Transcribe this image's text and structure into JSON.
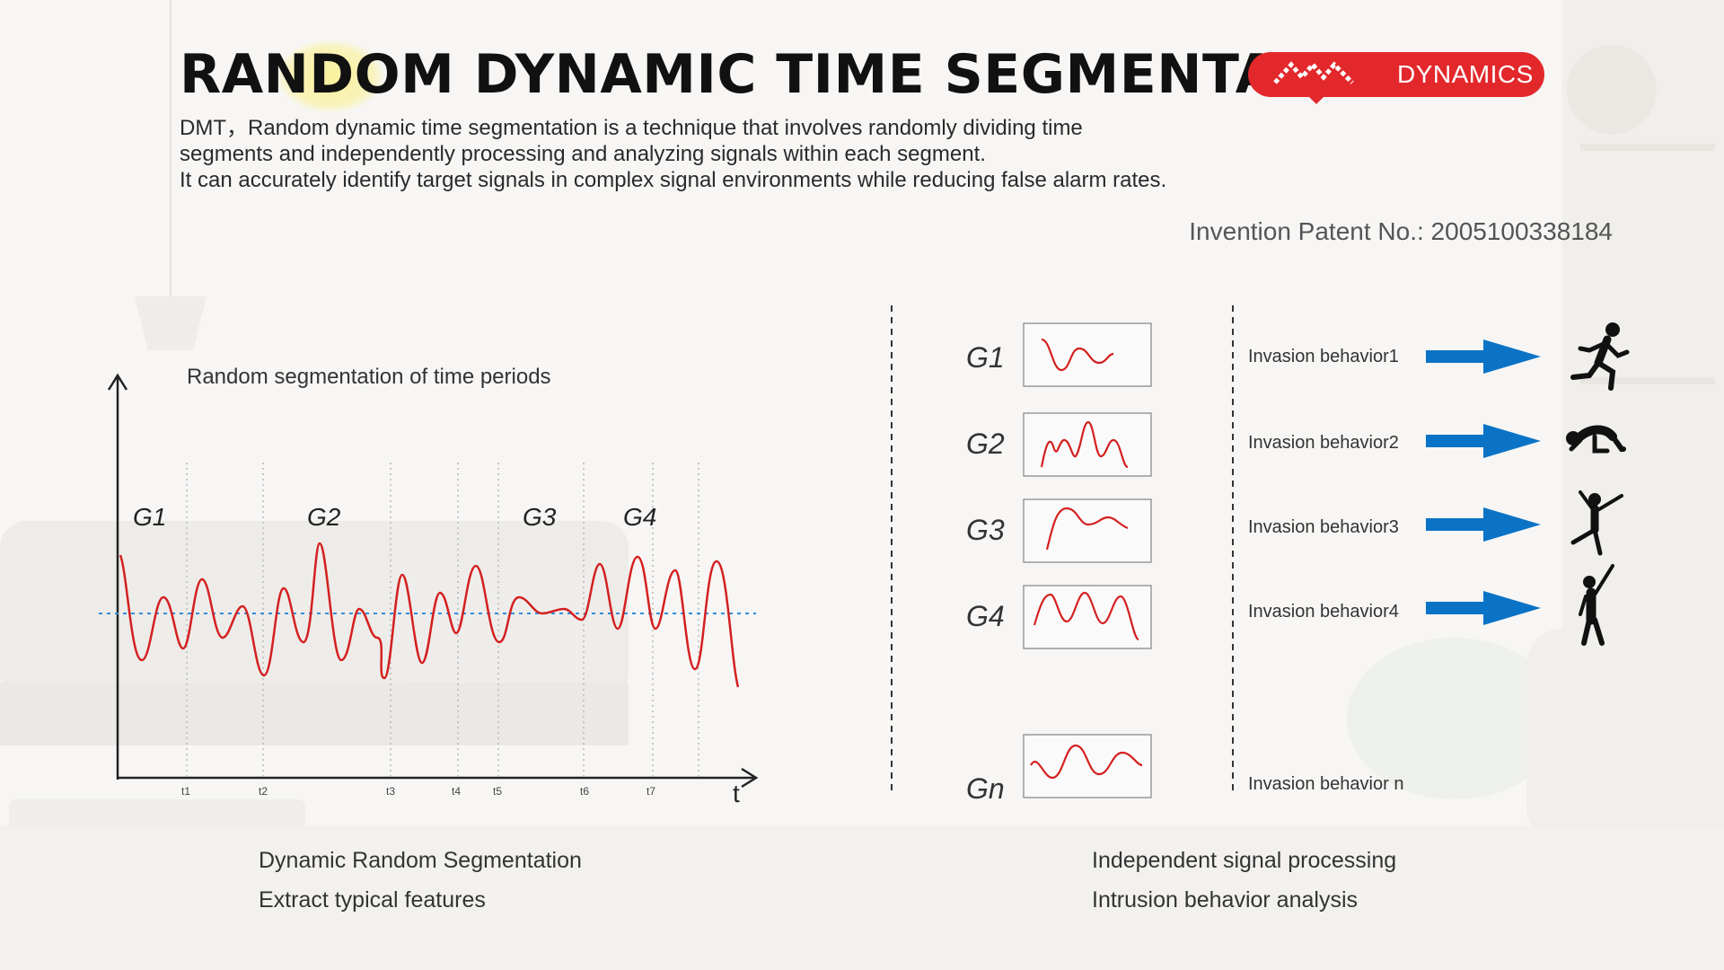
{
  "title": "RANDOM DYNAMIC TIME SEGMENTATION",
  "description": {
    "line1": "DMT，Random dynamic time segmentation is a technique that involves randomly dividing time",
    "line2": "segments and independently processing and analyzing signals within each segment.",
    "line3": "It can accurately identify target signals in complex signal environments while reducing false alarm rates."
  },
  "logo": {
    "text": "DYNAMICS"
  },
  "patent": "Invention Patent No.: 2005100338184",
  "chart": {
    "heading": "Random segmentation of time periods",
    "group_labels": [
      "G1",
      "G2",
      "G3",
      "G4"
    ],
    "tick_labels": [
      "t1",
      "t2",
      "t3",
      "t4",
      "t5",
      "t6",
      "t7"
    ],
    "x_axis_label": "t"
  },
  "segments": [
    {
      "label": "G1",
      "behavior": "Invasion behavior1",
      "icon": "running-person-icon"
    },
    {
      "label": "G2",
      "behavior": "Invasion behavior2",
      "icon": "crawling-person-icon"
    },
    {
      "label": "G3",
      "behavior": "Invasion behavior3",
      "icon": "jumping-person-icon"
    },
    {
      "label": "G4",
      "behavior": "Invasion behavior4",
      "icon": "climbing-person-icon"
    },
    {
      "label": "Gn",
      "behavior": "Invasion behavior n",
      "icon": ""
    }
  ],
  "captions": {
    "left1": "Dynamic Random Segmentation",
    "left2": "Extract typical features",
    "right1": "Independent signal processing",
    "right2": "Intrusion behavior analysis"
  },
  "colors": {
    "accent_red": "#e3282c",
    "signal_red": "#d42020",
    "arrow_blue": "#0a73c6",
    "baseline_blue": "#2f8fe0"
  }
}
